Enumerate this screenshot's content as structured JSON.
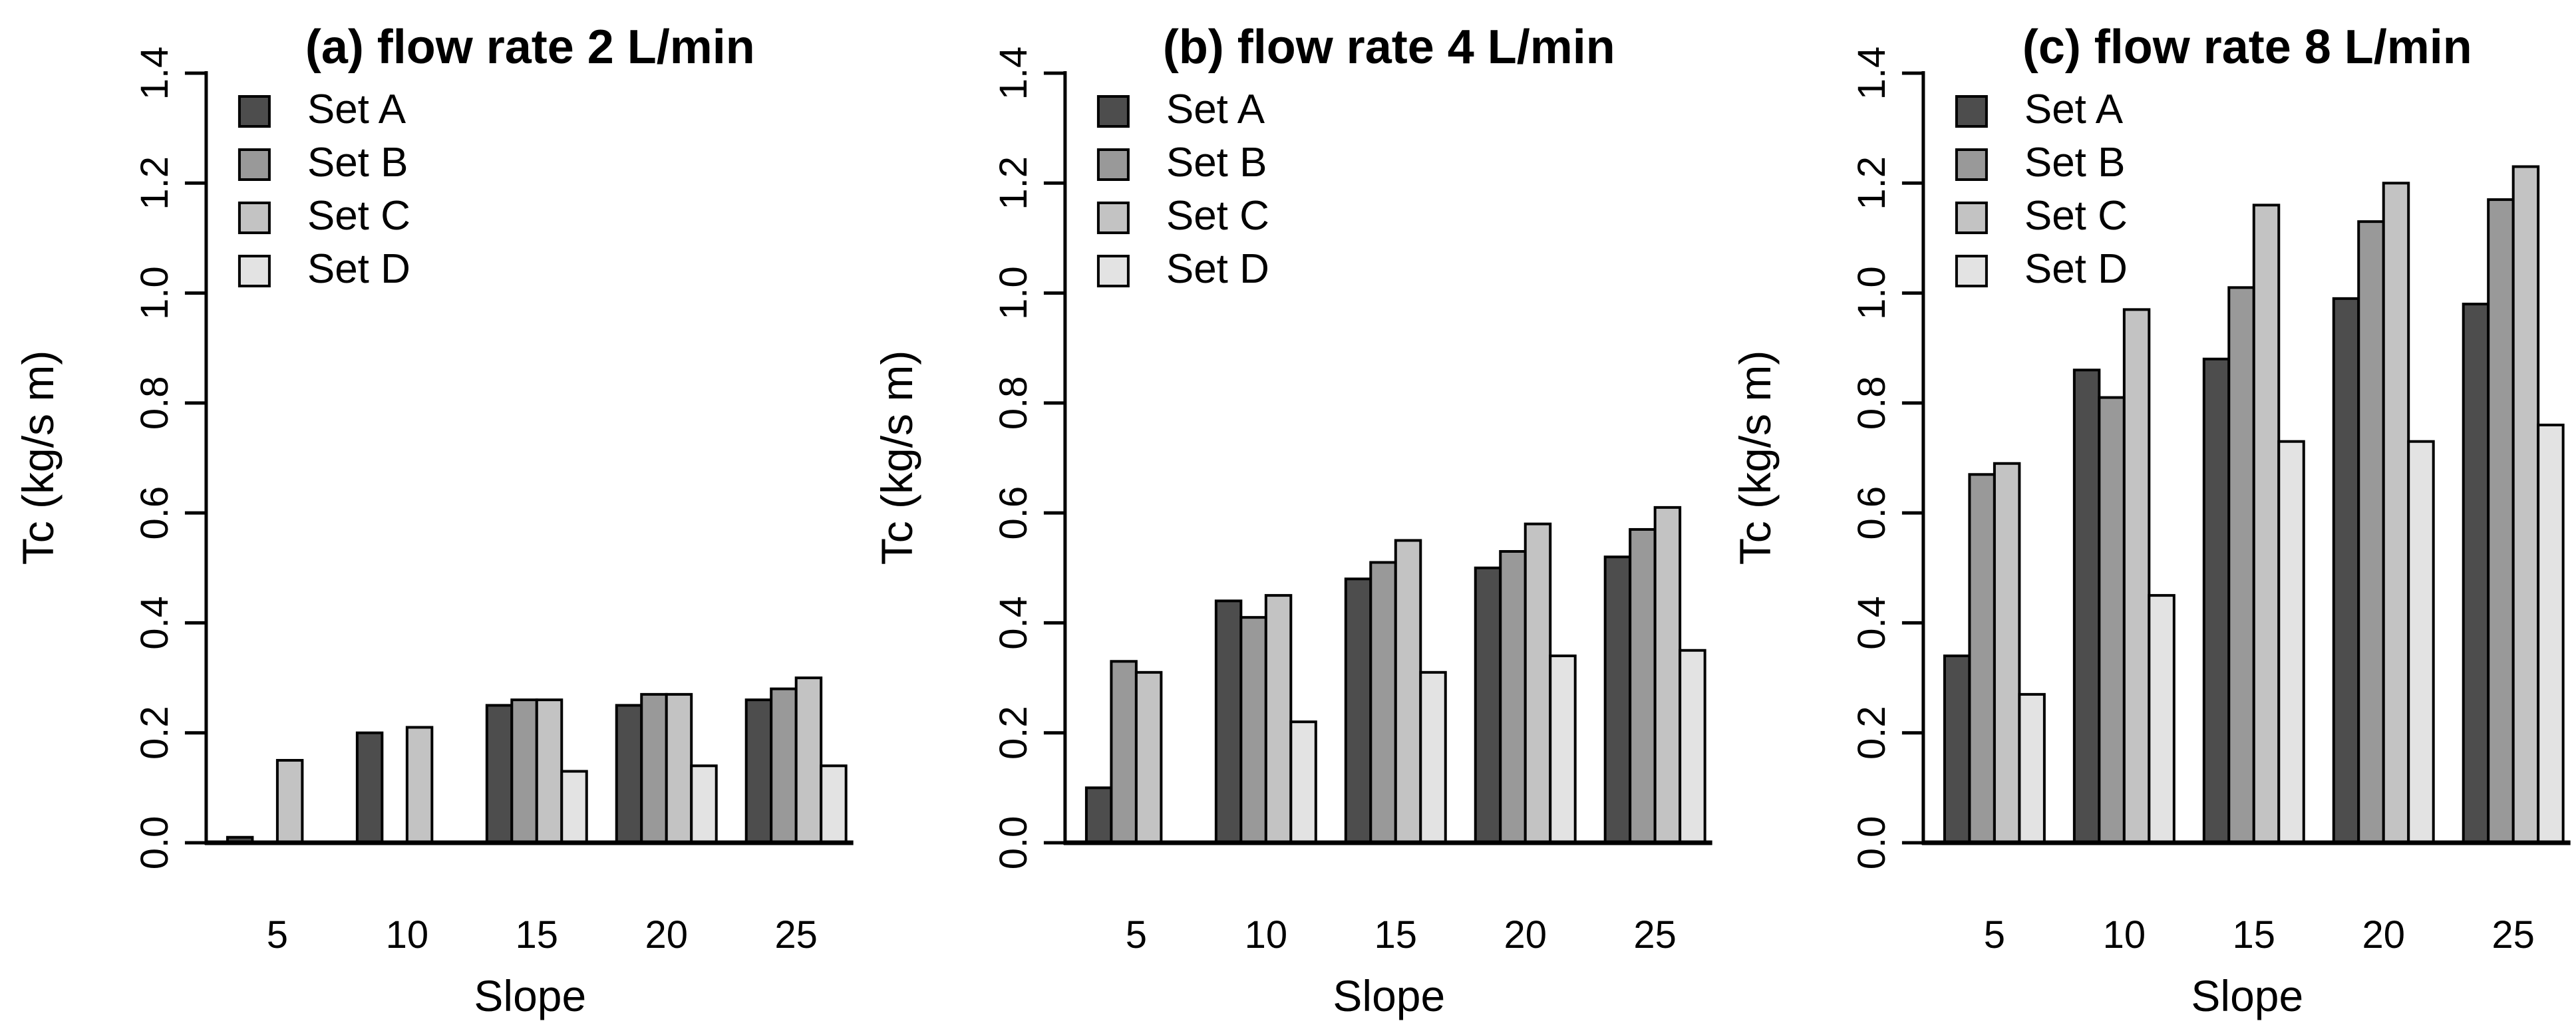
{
  "figure": {
    "background": "#ffffff",
    "bar_border_color": "#000000",
    "axis_color": "#000000"
  },
  "chart_data": [
    {
      "type": "bar",
      "title": "(a) flow rate 2 L/min",
      "xlabel": "Slope",
      "ylabel": "Tc (kg/s m)",
      "categories": [
        "5",
        "10",
        "15",
        "20",
        "25"
      ],
      "series": [
        {
          "name": "Set A",
          "color": "#4d4d4d",
          "values": [
            0.01,
            0.2,
            0.25,
            0.25,
            0.26
          ]
        },
        {
          "name": "Set B",
          "color": "#999999",
          "values": [
            0,
            0,
            0.26,
            0.27,
            0.28
          ]
        },
        {
          "name": "Set C",
          "color": "#c3c3c3",
          "values": [
            0.15,
            0.21,
            0.26,
            0.27,
            0.3
          ]
        },
        {
          "name": "Set D",
          "color": "#e3e3e3",
          "values": [
            0,
            0,
            0.13,
            0.14,
            0.14
          ]
        }
      ],
      "ylim": [
        0,
        1.4
      ],
      "ytick_labels": [
        "0.0",
        "0.2",
        "0.4",
        "0.6",
        "0.8",
        "1.0",
        "1.2",
        "1.4"
      ],
      "legend_position": "top-left",
      "grid": false
    },
    {
      "type": "bar",
      "title": "(b) flow rate 4 L/min",
      "xlabel": "Slope",
      "ylabel": "Tc (kg/s m)",
      "categories": [
        "5",
        "10",
        "15",
        "20",
        "25"
      ],
      "series": [
        {
          "name": "Set A",
          "color": "#4d4d4d",
          "values": [
            0.1,
            0.44,
            0.48,
            0.5,
            0.52
          ]
        },
        {
          "name": "Set B",
          "color": "#999999",
          "values": [
            0.33,
            0.41,
            0.51,
            0.53,
            0.57
          ]
        },
        {
          "name": "Set C",
          "color": "#c3c3c3",
          "values": [
            0.31,
            0.45,
            0.55,
            0.58,
            0.61
          ]
        },
        {
          "name": "Set D",
          "color": "#e3e3e3",
          "values": [
            0,
            0.22,
            0.31,
            0.34,
            0.35
          ]
        }
      ],
      "ylim": [
        0,
        1.4
      ],
      "ytick_labels": [
        "0.0",
        "0.2",
        "0.4",
        "0.6",
        "0.8",
        "1.0",
        "1.2",
        "1.4"
      ],
      "legend_position": "top-left",
      "grid": false
    },
    {
      "type": "bar",
      "title": "(c) flow rate 8 L/min",
      "xlabel": "Slope",
      "ylabel": "Tc (kg/s m)",
      "categories": [
        "5",
        "10",
        "15",
        "20",
        "25"
      ],
      "series": [
        {
          "name": "Set A",
          "color": "#4d4d4d",
          "values": [
            0.34,
            0.86,
            0.88,
            0.99,
            0.98
          ]
        },
        {
          "name": "Set B",
          "color": "#999999",
          "values": [
            0.67,
            0.81,
            1.01,
            1.13,
            1.17
          ]
        },
        {
          "name": "Set C",
          "color": "#c3c3c3",
          "values": [
            0.69,
            0.97,
            1.16,
            1.2,
            1.23
          ]
        },
        {
          "name": "Set D",
          "color": "#e3e3e3",
          "values": [
            0.27,
            0.45,
            0.73,
            0.73,
            0.76
          ]
        }
      ],
      "ylim": [
        0,
        1.4
      ],
      "ytick_labels": [
        "0.0",
        "0.2",
        "0.4",
        "0.6",
        "0.8",
        "1.0",
        "1.2",
        "1.4"
      ],
      "legend_position": "top-left",
      "grid": false
    }
  ]
}
